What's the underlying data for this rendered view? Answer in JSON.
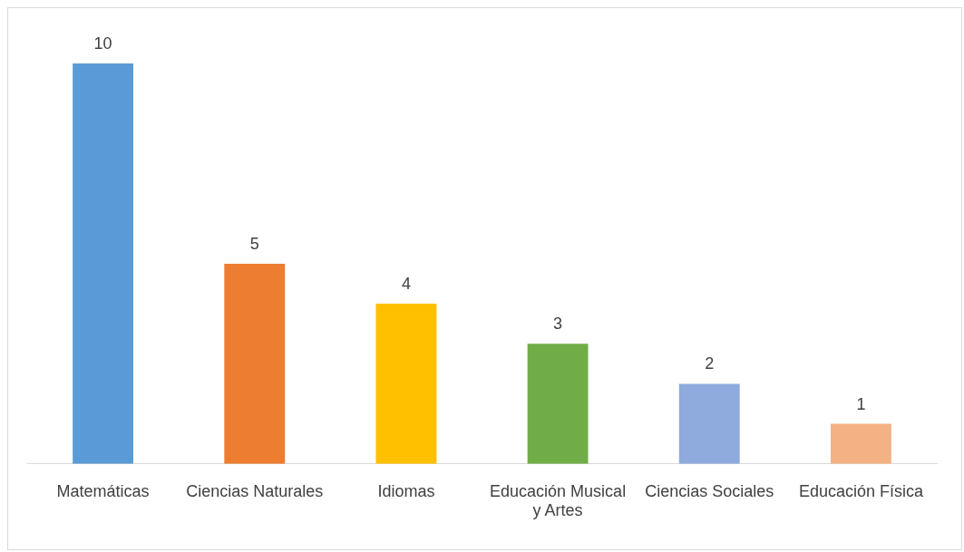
{
  "chart_data": {
    "type": "bar",
    "categories": [
      "Matemáticas",
      "Ciencias Naturales",
      "Idiomas",
      "Educación Musical y Artes",
      "Ciencias Sociales",
      "Educación Física"
    ],
    "values": [
      10,
      5,
      4,
      3,
      2,
      1
    ],
    "colors": [
      "#5b9bd5",
      "#ed7d31",
      "#ffc000",
      "#70ad47",
      "#8faadc",
      "#f4b183"
    ],
    "data_labels": true,
    "grid": false,
    "legend": false
  }
}
